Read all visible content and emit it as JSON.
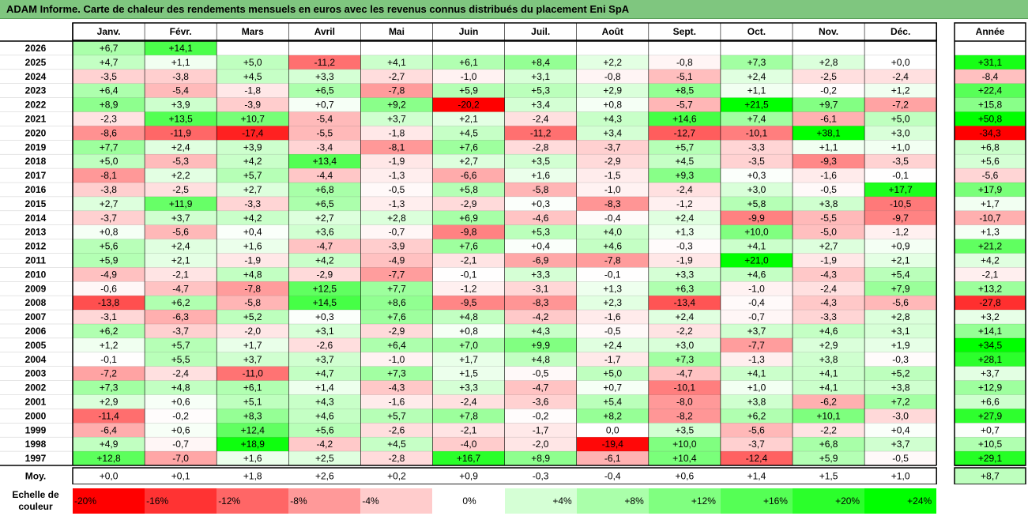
{
  "title": "ADAM Informe. Carte de chaleur des rendements mensuels en euros avec les revenus connus distribués du placement Eni SpA",
  "colors": {
    "title_bg": "#7fc67f",
    "negative_max": "#ff0000",
    "neutral": "#ffffff",
    "positive_max": "#00ff00"
  },
  "chart_data": {
    "type": "heatmap",
    "columns": [
      "Janv.",
      "Févr.",
      "Mars",
      "Avril",
      "Mai",
      "Juin",
      "Juil.",
      "Août",
      "Sept.",
      "Oct.",
      "Nov.",
      "Déc."
    ],
    "year_column_label": "Année",
    "rows": [
      {
        "year": "2026",
        "months": [
          "+6,7",
          "+14,1",
          "",
          "",
          "",
          "",
          "",
          "",
          "",
          "",
          "",
          ""
        ],
        "annual": ""
      },
      {
        "year": "2025",
        "months": [
          "+4,7",
          "+1,1",
          "+5,0",
          "-11,2",
          "+4,1",
          "+6,1",
          "+8,4",
          "+2,2",
          "-0,8",
          "+7,3",
          "+2,8",
          "+0,0"
        ],
        "annual": "+31,1"
      },
      {
        "year": "2024",
        "months": [
          "-3,5",
          "-3,8",
          "+4,5",
          "+3,3",
          "-2,7",
          "-1,0",
          "+3,1",
          "-0,8",
          "-5,1",
          "+2,4",
          "-2,5",
          "-2,4"
        ],
        "annual": "-8,4"
      },
      {
        "year": "2023",
        "months": [
          "+6,4",
          "-5,4",
          "-1,8",
          "+6,5",
          "-7,8",
          "+5,9",
          "+5,3",
          "+2,9",
          "+8,5",
          "+1,1",
          "-0,2",
          "+1,2"
        ],
        "annual": "+22,4"
      },
      {
        "year": "2022",
        "months": [
          "+8,9",
          "+3,9",
          "-3,9",
          "+0,7",
          "+9,2",
          "-20,2",
          "+3,4",
          "+0,8",
          "-5,7",
          "+21,5",
          "+9,7",
          "-7,2"
        ],
        "annual": "+15,8"
      },
      {
        "year": "2021",
        "months": [
          "-2,3",
          "+13,5",
          "+10,7",
          "-5,4",
          "+3,7",
          "+2,1",
          "-2,4",
          "+4,3",
          "+14,6",
          "+7,4",
          "-6,1",
          "+5,0"
        ],
        "annual": "+50,8"
      },
      {
        "year": "2020",
        "months": [
          "-8,6",
          "-11,9",
          "-17,4",
          "-5,5",
          "-1,8",
          "+4,5",
          "-11,2",
          "+3,4",
          "-12,7",
          "-10,1",
          "+38,1",
          "+3,0"
        ],
        "annual": "-34,3"
      },
      {
        "year": "2019",
        "months": [
          "+7,7",
          "+2,4",
          "+3,9",
          "-3,4",
          "-8,1",
          "+7,6",
          "-2,8",
          "-3,7",
          "+5,7",
          "-3,3",
          "+1,1",
          "+1,0"
        ],
        "annual": "+6,8"
      },
      {
        "year": "2018",
        "months": [
          "+5,0",
          "-5,3",
          "+4,2",
          "+13,4",
          "-1,9",
          "+2,7",
          "+3,5",
          "-2,9",
          "+4,5",
          "-3,5",
          "-9,3",
          "-3,5"
        ],
        "annual": "+5,6"
      },
      {
        "year": "2017",
        "months": [
          "-8,1",
          "+2,2",
          "+5,7",
          "-4,4",
          "-1,3",
          "-6,6",
          "+1,6",
          "-1,5",
          "+9,3",
          "+0,3",
          "-1,6",
          "-0,1"
        ],
        "annual": "-5,6"
      },
      {
        "year": "2016",
        "months": [
          "-3,8",
          "-2,5",
          "+2,7",
          "+6,8",
          "-0,5",
          "+5,8",
          "-5,8",
          "-1,0",
          "-2,4",
          "+3,0",
          "-0,5",
          "+17,7"
        ],
        "annual": "+17,9"
      },
      {
        "year": "2015",
        "months": [
          "+2,7",
          "+11,9",
          "-3,3",
          "+6,5",
          "-1,3",
          "-2,9",
          "+0,3",
          "-8,3",
          "-1,2",
          "+5,8",
          "+3,8",
          "-10,5"
        ],
        "annual": "+1,7"
      },
      {
        "year": "2014",
        "months": [
          "-3,7",
          "+3,7",
          "+4,2",
          "+2,7",
          "+2,8",
          "+6,9",
          "-4,6",
          "-0,4",
          "+2,4",
          "-9,9",
          "-5,5",
          "-9,7"
        ],
        "annual": "-10,7"
      },
      {
        "year": "2013",
        "months": [
          "+0,8",
          "-5,6",
          "+0,4",
          "+3,6",
          "-0,7",
          "-9,8",
          "+5,3",
          "+4,0",
          "+1,3",
          "+10,0",
          "-5,0",
          "-1,2"
        ],
        "annual": "+1,3"
      },
      {
        "year": "2012",
        "months": [
          "+5,6",
          "+2,4",
          "+1,6",
          "-4,7",
          "-3,9",
          "+7,6",
          "+0,4",
          "+4,6",
          "-0,3",
          "+4,1",
          "+2,7",
          "+0,9"
        ],
        "annual": "+21,2"
      },
      {
        "year": "2011",
        "months": [
          "+5,9",
          "+2,1",
          "-1,9",
          "+4,2",
          "-4,9",
          "-2,1",
          "-6,9",
          "-7,8",
          "-1,9",
          "+21,0",
          "-1,9",
          "+2,1"
        ],
        "annual": "+4,2"
      },
      {
        "year": "2010",
        "months": [
          "-4,9",
          "-2,1",
          "+4,8",
          "-2,9",
          "-7,7",
          "-0,1",
          "+3,3",
          "-0,1",
          "+3,3",
          "+4,6",
          "-4,3",
          "+5,4"
        ],
        "annual": "-2,1"
      },
      {
        "year": "2009",
        "months": [
          "-0,6",
          "-4,7",
          "-7,8",
          "+12,5",
          "+7,7",
          "-1,2",
          "-3,1",
          "+1,3",
          "+6,3",
          "-1,0",
          "-2,4",
          "+7,9"
        ],
        "annual": "+13,2"
      },
      {
        "year": "2008",
        "months": [
          "-13,8",
          "+6,2",
          "-5,8",
          "+14,5",
          "+8,6",
          "-9,5",
          "-8,3",
          "+2,3",
          "-13,4",
          "-0,4",
          "-4,3",
          "-5,6"
        ],
        "annual": "-27,8"
      },
      {
        "year": "2007",
        "months": [
          "-3,1",
          "-6,3",
          "+5,2",
          "+0,3",
          "+7,6",
          "+4,8",
          "-4,2",
          "-1,6",
          "+2,4",
          "-0,7",
          "-3,3",
          "+2,8"
        ],
        "annual": "+3,2"
      },
      {
        "year": "2006",
        "months": [
          "+6,2",
          "-3,7",
          "-2,0",
          "+3,1",
          "-2,9",
          "+0,8",
          "+4,3",
          "-0,5",
          "-2,2",
          "+3,7",
          "+4,6",
          "+3,1"
        ],
        "annual": "+14,1"
      },
      {
        "year": "2005",
        "months": [
          "+1,2",
          "+5,7",
          "+1,7",
          "-2,6",
          "+6,4",
          "+7,0",
          "+9,9",
          "+2,4",
          "+3,0",
          "-7,7",
          "+2,9",
          "+1,9"
        ],
        "annual": "+34,5"
      },
      {
        "year": "2004",
        "months": [
          "-0,1",
          "+5,5",
          "+3,7",
          "+3,7",
          "-1,0",
          "+1,7",
          "+4,8",
          "-1,7",
          "+7,3",
          "-1,3",
          "+3,8",
          "-0,3"
        ],
        "annual": "+28,1"
      },
      {
        "year": "2003",
        "months": [
          "-7,2",
          "-2,4",
          "-11,0",
          "+4,7",
          "+7,3",
          "+1,5",
          "-0,5",
          "+5,0",
          "-4,7",
          "+4,1",
          "+4,1",
          "+5,2"
        ],
        "annual": "+3,7"
      },
      {
        "year": "2002",
        "months": [
          "+7,3",
          "+4,8",
          "+6,1",
          "+1,4",
          "-4,3",
          "+3,3",
          "-4,7",
          "+0,7",
          "-10,1",
          "+1,0",
          "+4,1",
          "+3,8"
        ],
        "annual": "+12,9"
      },
      {
        "year": "2001",
        "months": [
          "+2,9",
          "+0,6",
          "+5,1",
          "+4,3",
          "-1,6",
          "-2,4",
          "-3,6",
          "+5,4",
          "-8,0",
          "+3,8",
          "-6,2",
          "+7,2"
        ],
        "annual": "+6,6"
      },
      {
        "year": "2000",
        "months": [
          "-11,4",
          "-0,2",
          "+8,3",
          "+4,6",
          "+5,7",
          "+7,8",
          "-0,2",
          "+8,2",
          "-8,2",
          "+6,2",
          "+10,1",
          "-3,0"
        ],
        "annual": "+27,9"
      },
      {
        "year": "1999",
        "months": [
          "-6,4",
          "+0,6",
          "+12,4",
          "+5,6",
          "-2,6",
          "-2,1",
          "-1,7",
          "0,0",
          "+3,5",
          "-5,6",
          "-2,2",
          "+0,4"
        ],
        "annual": "+0,7"
      },
      {
        "year": "1998",
        "months": [
          "+4,9",
          "-0,7",
          "+18,9",
          "-4,2",
          "+4,5",
          "-4,0",
          "-2,0",
          "-19,4",
          "+10,0",
          "-3,7",
          "+6,8",
          "+3,7"
        ],
        "annual": "+10,5"
      },
      {
        "year": "1997",
        "months": [
          "+12,8",
          "-7,0",
          "+1,6",
          "+2,5",
          "-2,8",
          "+16,7",
          "+8,9",
          "-6,1",
          "+10,4",
          "-12,4",
          "+5,9",
          "-0,5"
        ],
        "annual": "+29,1"
      }
    ],
    "average": {
      "label": "Moy.",
      "months": [
        "+0,0",
        "+0,1",
        "+1,8",
        "+2,6",
        "+0,2",
        "+0,9",
        "-0,3",
        "-0,4",
        "+0,6",
        "+1,4",
        "+1,5",
        "+1,0"
      ],
      "annual": "+8,7"
    },
    "color_scale": {
      "title_line1": "Echelle de",
      "title_line2": "couleur",
      "stops": [
        {
          "label": "-20%",
          "value": -20,
          "color": "#ff0000"
        },
        {
          "label": "-16%",
          "value": -16,
          "color": "#ff3333"
        },
        {
          "label": "-12%",
          "value": -12,
          "color": "#ff6666"
        },
        {
          "label": "-8%",
          "value": -8,
          "color": "#ff9999"
        },
        {
          "label": "-4%",
          "value": -4,
          "color": "#ffcccc"
        },
        {
          "label": "0%",
          "value": 0,
          "color": "#ffffff"
        },
        {
          "label": "+4%",
          "value": 4,
          "color": "#d5ffd5"
        },
        {
          "label": "+8%",
          "value": 8,
          "color": "#aaffaa"
        },
        {
          "label": "+12%",
          "value": 12,
          "color": "#80ff80"
        },
        {
          "label": "+16%",
          "value": 16,
          "color": "#55ff55"
        },
        {
          "label": "+20%",
          "value": 20,
          "color": "#2bff2b"
        },
        {
          "label": "+24%",
          "value": 24,
          "color": "#00ff00"
        }
      ]
    }
  }
}
